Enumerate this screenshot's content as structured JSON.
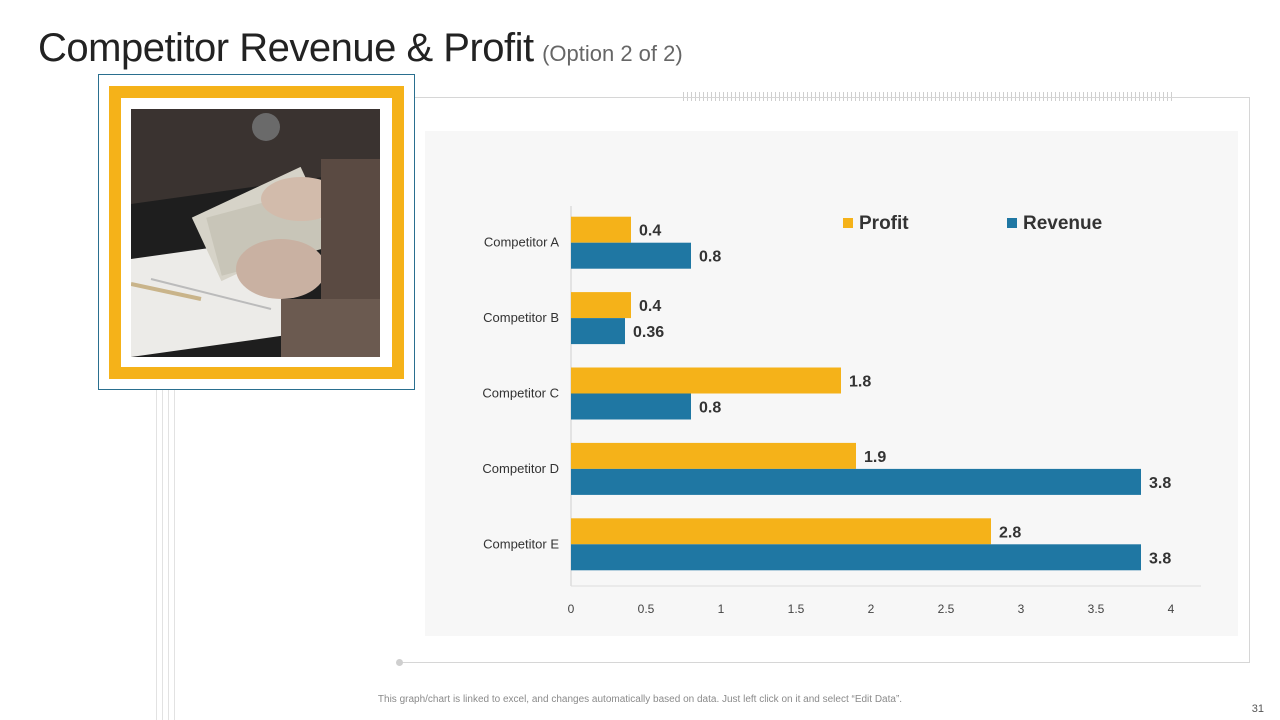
{
  "slide": {
    "title": "Competitor Revenue & Profit",
    "subtitle": "(Option 2 of 2)",
    "footnote": "This graph/chart is linked to excel,  and changes automatically based on data. Just left click on it and select “Edit Data”.",
    "page_number": "31"
  },
  "colors": {
    "profit": "#F5B219",
    "revenue": "#1F77A3",
    "accent_frame": "#2a6f8f"
  },
  "chart_data": {
    "type": "bar",
    "orientation": "horizontal",
    "categories": [
      "Competitor A",
      "Competitor B",
      "Competitor  C",
      "Competitor D",
      "Competitor E"
    ],
    "series": [
      {
        "name": "Profit",
        "values": [
          0.4,
          0.4,
          1.8,
          1.9,
          2.8
        ],
        "labels": [
          "0.4",
          "0.4",
          "1.8",
          "1.9",
          "2.8"
        ]
      },
      {
        "name": "Revenue",
        "values": [
          0.8,
          0.36,
          0.8,
          3.8,
          3.8
        ],
        "labels": [
          "0.8",
          "0.36",
          "0.8",
          "3.8",
          "3.8"
        ]
      }
    ],
    "xlim": [
      0,
      4
    ],
    "x_ticks": [
      "0",
      "0.5",
      "1",
      "1.5",
      "2",
      "2.5",
      "3",
      "3.5",
      "4"
    ],
    "legend_position": "top-right",
    "grid": false
  }
}
